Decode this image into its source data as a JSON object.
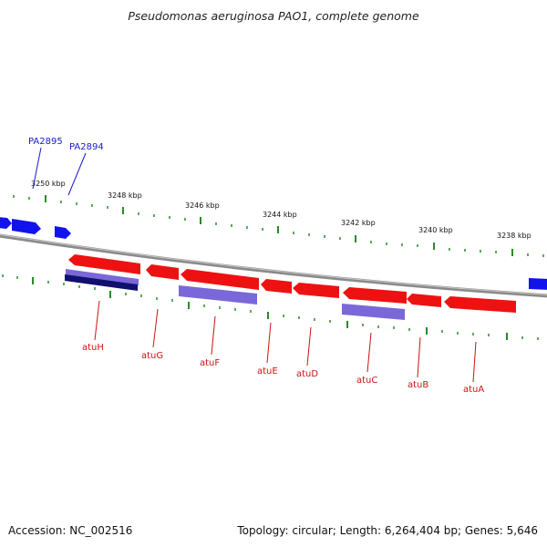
{
  "title": "Pseudomonas aeruginosa PAO1, complete genome",
  "footer": {
    "accession": "Accession: NC_002516",
    "summary": "Topology: circular; Length: 6,264,404 bp; Genes: 5,646"
  },
  "colors": {
    "backbone": "#808080",
    "forward_gene": "#1010ee",
    "reverse_gene": "#ee1010",
    "feature_bar": "#7060cc",
    "feature_bar_dark": "#10106a",
    "tick": "#228822",
    "label_forward": "#1a1acc",
    "label_reverse": "#cc1111"
  },
  "tick_labels": [
    "3250 kbp",
    "3248 kbp",
    "3246 kbp",
    "3244 kbp",
    "3242 kbp",
    "3240 kbp",
    "3238 kbp"
  ],
  "forward_gene_labels": [
    "PA2895",
    "PA2894"
  ],
  "reverse_gene_labels": [
    "atuH",
    "atuG",
    "atuF",
    "atuE",
    "atuD",
    "atuC",
    "atuB",
    "atuA"
  ]
}
